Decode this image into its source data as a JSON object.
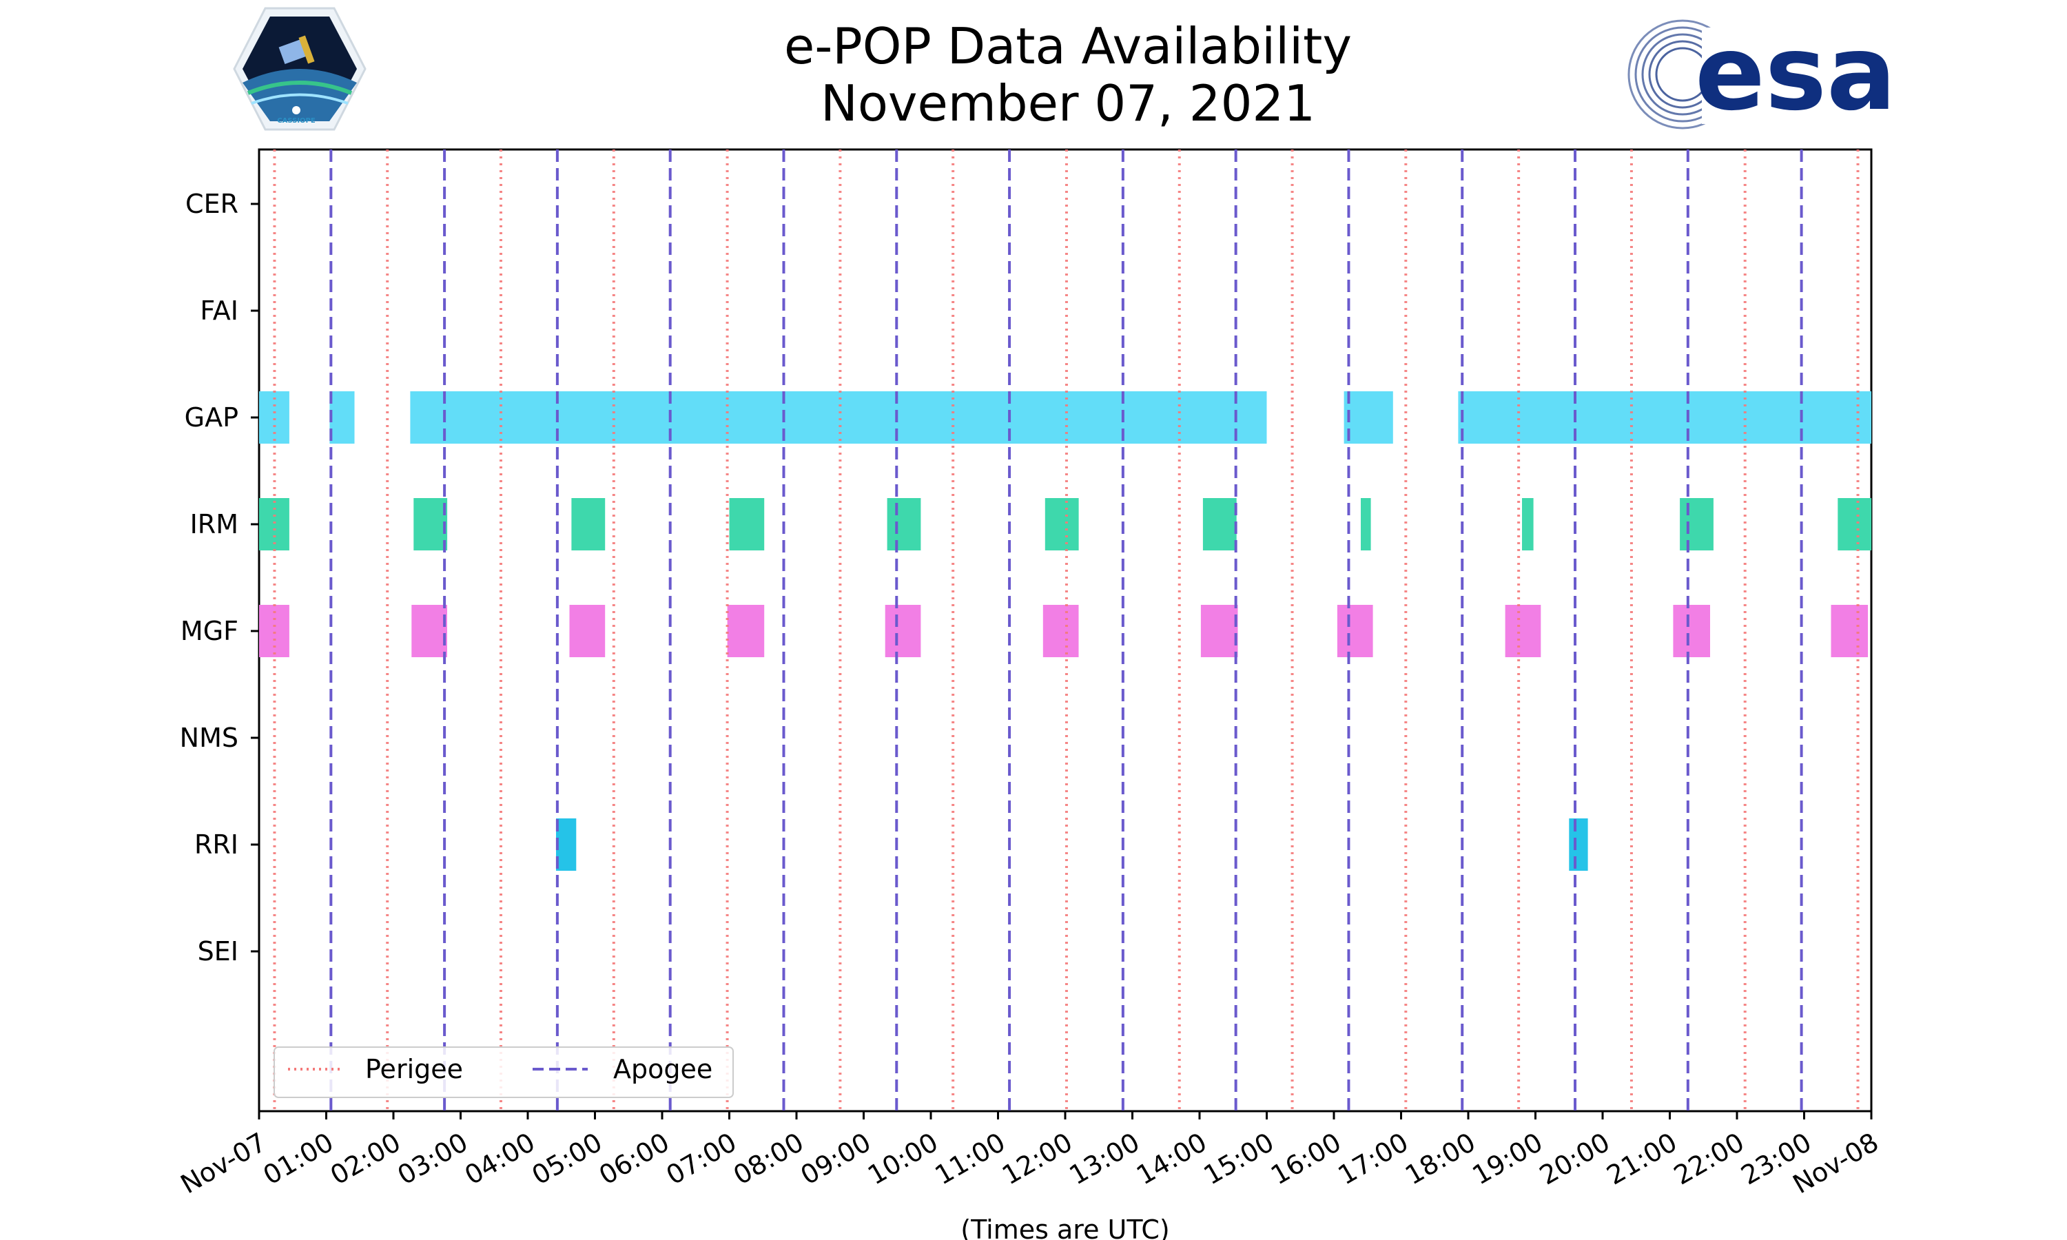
{
  "chart_data": {
    "type": "timeline",
    "title": "e-POP Data Availability",
    "subtitle": "November 07, 2021",
    "xlabel": "(Times are UTC)",
    "x_unit": "hours",
    "xlim": [
      0,
      24
    ],
    "x_ticks": [
      {
        "h": 0,
        "label": "Nov-07"
      },
      {
        "h": 1,
        "label": "01:00"
      },
      {
        "h": 2,
        "label": "02:00"
      },
      {
        "h": 3,
        "label": "03:00"
      },
      {
        "h": 4,
        "label": "04:00"
      },
      {
        "h": 5,
        "label": "05:00"
      },
      {
        "h": 6,
        "label": "06:00"
      },
      {
        "h": 7,
        "label": "07:00"
      },
      {
        "h": 8,
        "label": "08:00"
      },
      {
        "h": 9,
        "label": "09:00"
      },
      {
        "h": 10,
        "label": "10:00"
      },
      {
        "h": 11,
        "label": "11:00"
      },
      {
        "h": 12,
        "label": "12:00"
      },
      {
        "h": 13,
        "label": "13:00"
      },
      {
        "h": 14,
        "label": "14:00"
      },
      {
        "h": 15,
        "label": "15:00"
      },
      {
        "h": 16,
        "label": "16:00"
      },
      {
        "h": 17,
        "label": "17:00"
      },
      {
        "h": 18,
        "label": "18:00"
      },
      {
        "h": 19,
        "label": "19:00"
      },
      {
        "h": 20,
        "label": "20:00"
      },
      {
        "h": 21,
        "label": "21:00"
      },
      {
        "h": 22,
        "label": "22:00"
      },
      {
        "h": 23,
        "label": "23:00"
      },
      {
        "h": 24,
        "label": "Nov-08"
      }
    ],
    "instruments": [
      "CER",
      "FAI",
      "GAP",
      "IRM",
      "MGF",
      "NMS",
      "RRI",
      "SEI"
    ],
    "series": [
      {
        "name": "CER",
        "color": "#7ec8e3",
        "intervals": []
      },
      {
        "name": "FAI",
        "color": "#7ec8e3",
        "intervals": []
      },
      {
        "name": "GAP",
        "color": "#62ddf8",
        "intervals": [
          [
            0.0,
            0.45
          ],
          [
            1.05,
            1.42
          ],
          [
            2.25,
            15.0
          ],
          [
            16.15,
            16.88
          ],
          [
            17.85,
            24.0
          ]
        ]
      },
      {
        "name": "IRM",
        "color": "#3ed8ac",
        "intervals": [
          [
            0.0,
            0.45
          ],
          [
            2.3,
            2.8
          ],
          [
            4.65,
            5.15
          ],
          [
            7.0,
            7.52
          ],
          [
            9.35,
            9.85
          ],
          [
            11.7,
            12.2
          ],
          [
            14.05,
            14.55
          ],
          [
            16.4,
            16.55
          ],
          [
            18.8,
            18.97
          ],
          [
            21.15,
            21.65
          ],
          [
            23.5,
            24.0
          ]
        ]
      },
      {
        "name": "MGF",
        "color": "#f27fe5",
        "intervals": [
          [
            0.0,
            0.45
          ],
          [
            2.27,
            2.8
          ],
          [
            4.62,
            5.15
          ],
          [
            6.97,
            7.52
          ],
          [
            9.32,
            9.85
          ],
          [
            11.67,
            12.2
          ],
          [
            14.02,
            14.57
          ],
          [
            16.05,
            16.58
          ],
          [
            18.55,
            19.08
          ],
          [
            21.05,
            21.6
          ],
          [
            23.4,
            23.95
          ]
        ]
      },
      {
        "name": "NMS",
        "color": "#7ec8e3",
        "intervals": []
      },
      {
        "name": "RRI",
        "color": "#25c3e8",
        "intervals": [
          [
            4.42,
            4.72
          ],
          [
            19.5,
            19.78
          ]
        ]
      },
      {
        "name": "SEI",
        "color": "#7ec8e3",
        "intervals": []
      }
    ],
    "perigee_times": [
      0.23,
      1.91,
      3.6,
      5.28,
      6.97,
      8.65,
      10.33,
      12.02,
      13.7,
      15.38,
      17.07,
      18.75,
      20.43,
      22.12,
      23.8
    ],
    "apogee_times": [
      1.07,
      2.76,
      4.44,
      6.12,
      7.81,
      9.49,
      11.17,
      12.86,
      14.54,
      16.22,
      17.91,
      19.59,
      21.27,
      22.96
    ],
    "perigee_color": "#f47a7a",
    "apogee_color": "#6a5acd",
    "legend": [
      {
        "label": "Perigee",
        "style": "dotted"
      },
      {
        "label": "Apogee",
        "style": "dashed"
      }
    ],
    "legend_position": "lower-left"
  },
  "logos": {
    "left_label": "CASSIOPE",
    "right_label": "esa"
  }
}
